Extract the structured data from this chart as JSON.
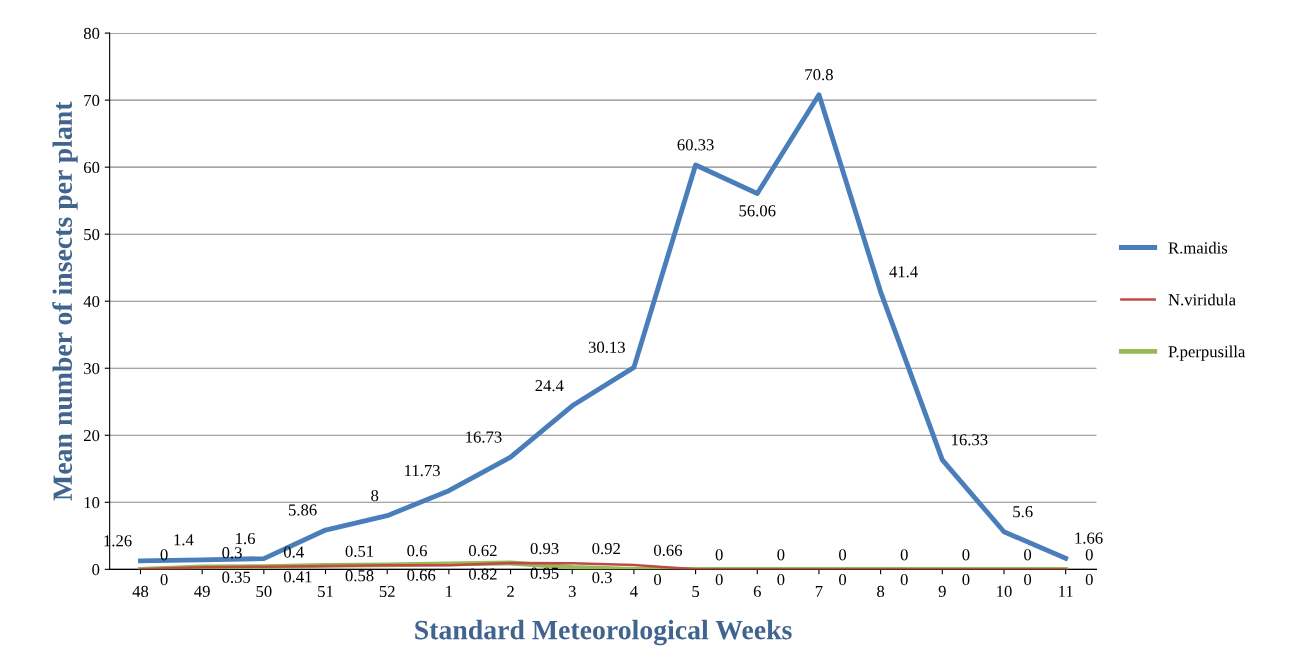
{
  "chart_data": {
    "type": "line",
    "xlabel": "Standard Meteorological Weeks",
    "ylabel": "Mean number of insects per plant",
    "categories": [
      "48",
      "49",
      "50",
      "51",
      "52",
      "1",
      "2",
      "3",
      "4",
      "5",
      "6",
      "7",
      "8",
      "9",
      "10",
      "11"
    ],
    "series": [
      {
        "name": "R.maidis",
        "color": "#4a7ebb",
        "values": [
          1.26,
          1.4,
          1.6,
          5.86,
          8,
          11.73,
          16.73,
          24.4,
          30.13,
          60.33,
          56.06,
          70.8,
          41.4,
          16.33,
          5.6,
          1.66
        ]
      },
      {
        "name": "N.viridula",
        "color": "#be4b48",
        "values": [
          0,
          0.3,
          0.4,
          0.51,
          0.6,
          0.62,
          0.93,
          0.92,
          0.66,
          0,
          0,
          0,
          0,
          0,
          0,
          0
        ]
      },
      {
        "name": "P.perpusilla",
        "color": "#98b954",
        "values": [
          0,
          0.35,
          0.41,
          0.58,
          0.66,
          0.82,
          0.95,
          0.3,
          0,
          0,
          0,
          0,
          0,
          0,
          0,
          0
        ]
      }
    ],
    "ylim": [
      0,
      80
    ],
    "yticks": [
      0,
      10,
      20,
      30,
      40,
      50,
      60,
      70,
      80
    ],
    "grid": "y",
    "legend": "right",
    "data_labels": true,
    "marker": "none",
    "line_style": "solid"
  }
}
